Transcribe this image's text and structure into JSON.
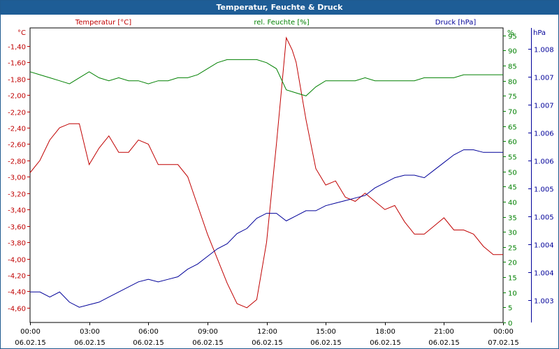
{
  "window": {
    "title": "Temperatur, Feuchte & Druck"
  },
  "colors": {
    "temperature": "#c00000",
    "humidity": "#008000",
    "pressure": "#000099",
    "grid": "#000000",
    "titlebar": "#1e5d96"
  },
  "chart_data": {
    "type": "line",
    "title": "Temperatur, Feuchte & Druck",
    "grid": true,
    "x_ticks": [
      {
        "time": "00:00",
        "date": "06.02.15"
      },
      {
        "time": "03:00",
        "date": "06.02.15"
      },
      {
        "time": "06:00",
        "date": "06.02.15"
      },
      {
        "time": "09:00",
        "date": "06.02.15"
      },
      {
        "time": "12:00",
        "date": "06.02.15"
      },
      {
        "time": "15:00",
        "date": "06.02.15"
      },
      {
        "time": "18:00",
        "date": "06.02.15"
      },
      {
        "time": "21:00",
        "date": "06.02.15"
      },
      {
        "time": "00:00",
        "date": "07.02.15"
      }
    ],
    "xlim_hours": [
      0,
      24
    ],
    "axes": {
      "temperature": {
        "label": "Temperatur [°C]",
        "unit": "°C",
        "ylim": [
          -4.78,
          -1.18
        ],
        "ticks": [
          "-1,40",
          "-1,60",
          "-1,80",
          "-2,00",
          "-2,20",
          "-2,40",
          "-2,60",
          "-2,80",
          "-3,00",
          "-3,20",
          "-3,40",
          "-3,60",
          "-3,80",
          "-4,00",
          "-4,20",
          "-4,40",
          "-4,60"
        ]
      },
      "humidity": {
        "label": "rel. Feuchte [%]",
        "unit": "%",
        "ylim": [
          0,
          97.5
        ],
        "ticks": [
          "95",
          "90",
          "85",
          "80",
          "75",
          "70",
          "65",
          "60",
          "55",
          "50",
          "45",
          "40",
          "35",
          "30",
          "25",
          "20",
          "15",
          "10",
          "5",
          "0"
        ]
      },
      "pressure": {
        "label": "Druck [hPa]",
        "unit": "hPa",
        "ticks": [
          "1.008",
          "1.007",
          "1.007",
          "1.006",
          "1.006",
          "1.005",
          "1.005",
          "1.004",
          "1.004",
          "1.003"
        ]
      }
    },
    "series": [
      {
        "name": "Temperatur [°C]",
        "axis": "temperature",
        "x": [
          0,
          0.5,
          1,
          1.5,
          2,
          2.5,
          3,
          3.5,
          4,
          4.5,
          5,
          5.5,
          6,
          6.5,
          7,
          7.5,
          8,
          8.5,
          9,
          9.5,
          10,
          10.5,
          11,
          11.5,
          12,
          12.5,
          13,
          13.3,
          13.5,
          14,
          14.5,
          15,
          15.5,
          16,
          16.5,
          17,
          17.5,
          18,
          18.5,
          19,
          19.5,
          20,
          20.5,
          21,
          21.5,
          22,
          22.5,
          23,
          23.5,
          24
        ],
        "values": [
          -2.95,
          -2.8,
          -2.55,
          -2.4,
          -2.35,
          -2.35,
          -2.85,
          -2.65,
          -2.5,
          -2.7,
          -2.7,
          -2.55,
          -2.6,
          -2.85,
          -2.85,
          -2.85,
          -3.0,
          -3.35,
          -3.7,
          -4.0,
          -4.3,
          -4.55,
          -4.6,
          -4.5,
          -3.8,
          -2.6,
          -1.3,
          -1.45,
          -1.6,
          -2.3,
          -2.9,
          -3.1,
          -3.05,
          -3.25,
          -3.3,
          -3.2,
          -3.3,
          -3.4,
          -3.35,
          -3.55,
          -3.7,
          -3.7,
          -3.6,
          -3.5,
          -3.65,
          -3.65,
          -3.7,
          -3.85,
          -3.95,
          -3.95
        ]
      },
      {
        "name": "rel. Feuchte [%]",
        "axis": "humidity",
        "x": [
          0,
          0.5,
          1,
          1.5,
          2,
          2.5,
          3,
          3.5,
          4,
          4.5,
          5,
          5.5,
          6,
          6.5,
          7,
          7.5,
          8,
          8.5,
          9,
          9.5,
          10,
          10.5,
          11,
          11.5,
          12,
          12.5,
          13,
          13.5,
          14,
          14.5,
          15,
          15.5,
          16,
          16.5,
          17,
          17.5,
          18,
          18.5,
          19,
          19.5,
          20,
          20.5,
          21,
          21.5,
          22,
          22.5,
          23,
          23.5,
          24
        ],
        "values": [
          83,
          82,
          81,
          80,
          79,
          81,
          83,
          81,
          80,
          81,
          80,
          80,
          79,
          80,
          80,
          81,
          81,
          82,
          84,
          86,
          87,
          87,
          87,
          87,
          86,
          84,
          77,
          76,
          75,
          78,
          80,
          80,
          80,
          80,
          81,
          80,
          80,
          80,
          80,
          80,
          81,
          81,
          81,
          81,
          82,
          82,
          82,
          82,
          82
        ]
      },
      {
        "name": "Druck [hPa]",
        "axis": "pressure",
        "x": [
          0,
          0.5,
          1,
          1.5,
          2,
          2.5,
          3,
          3.5,
          4,
          4.5,
          5,
          5.5,
          6,
          6.5,
          7,
          7.5,
          8,
          8.5,
          9,
          9.5,
          10,
          10.5,
          11,
          11.5,
          12,
          12.5,
          13,
          13.5,
          14,
          14.5,
          15,
          15.5,
          16,
          16.5,
          17,
          17.5,
          18,
          18.5,
          19,
          19.5,
          20,
          20.5,
          21,
          21.5,
          22,
          22.5,
          23,
          23.5,
          24
        ],
        "values": [
          1003.3,
          1003.3,
          1003.2,
          1003.3,
          1003.1,
          1003.0,
          1003.05,
          1003.1,
          1003.2,
          1003.3,
          1003.4,
          1003.5,
          1003.55,
          1003.5,
          1003.55,
          1003.6,
          1003.75,
          1003.85,
          1004.0,
          1004.15,
          1004.25,
          1004.45,
          1004.55,
          1004.75,
          1004.85,
          1004.85,
          1004.7,
          1004.8,
          1004.9,
          1004.9,
          1005.0,
          1005.05,
          1005.1,
          1005.15,
          1005.2,
          1005.35,
          1005.45,
          1005.55,
          1005.6,
          1005.6,
          1005.55,
          1005.7,
          1005.85,
          1006.0,
          1006.1,
          1006.1,
          1006.05,
          1006.05,
          1006.05
        ]
      }
    ]
  }
}
